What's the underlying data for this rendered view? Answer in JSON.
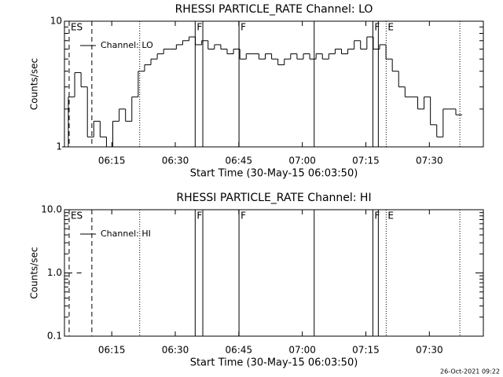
{
  "footer": "26-Oct-2021 09:22",
  "chart_data": [
    {
      "type": "line",
      "title": "RHESSI PARTICLE_RATE Channel: LO",
      "x_label": "Start Time (30-May-15 06:03:50)",
      "y_label": "Counts/sec",
      "log_y": true,
      "xlim": [
        363.83,
        462.75
      ],
      "ylim": [
        1,
        10
      ],
      "yticks": [
        1,
        10
      ],
      "xticks": [
        {
          "value": 375,
          "label": "06:15"
        },
        {
          "value": 390,
          "label": "06:30"
        },
        {
          "value": 405,
          "label": "06:45"
        },
        {
          "value": 420,
          "label": "07:00"
        },
        {
          "value": 435,
          "label": "07:15"
        },
        {
          "value": 450,
          "label": "07:30"
        }
      ],
      "markers": [
        {
          "x": 364.94,
          "style": "dashed",
          "label": "ES"
        },
        {
          "x": 370.3,
          "style": "dashed"
        },
        {
          "x": 381.6,
          "style": "dotted"
        },
        {
          "x": 394.7,
          "style": "solid",
          "label": "F"
        },
        {
          "x": 396.5,
          "style": "solid"
        },
        {
          "x": 405.05,
          "style": "solid",
          "label": "F"
        },
        {
          "x": 422.8,
          "style": "solid"
        },
        {
          "x": 436.66,
          "style": "solid",
          "label": "F"
        },
        {
          "x": 437.95,
          "style": "solid"
        },
        {
          "x": 439.8,
          "style": "dotted",
          "label": "E"
        },
        {
          "x": 457.2,
          "style": "dotted"
        }
      ],
      "series": [
        {
          "name": "Channel: LO",
          "color": "#000000",
          "x": [
            364,
            365.5,
            367,
            368.5,
            370,
            371.5,
            373,
            374.5,
            376,
            377.5,
            379,
            380.5,
            382,
            383.5,
            385,
            386.5,
            388,
            389.5,
            391,
            392.5,
            394,
            395.5,
            397,
            398.5,
            400,
            401.5,
            403,
            404.5,
            406,
            407.5,
            409,
            410.5,
            412,
            413.5,
            415,
            416.5,
            418,
            419.5,
            421,
            422.5,
            424,
            425.5,
            427,
            428.5,
            430,
            431.5,
            433,
            434.5,
            436,
            437.5,
            439,
            440.5,
            442,
            443.5,
            445,
            446.5,
            448,
            449.5,
            451,
            452.5,
            454,
            455.5,
            457
          ],
          "values": [
            1,
            2.5,
            3.9,
            3,
            1.2,
            1.6,
            1.2,
            1,
            1.6,
            2,
            1.6,
            2.5,
            4,
            4.5,
            5,
            5.5,
            6,
            6,
            6.5,
            7,
            7.5,
            6.5,
            7,
            6,
            6.5,
            6,
            5.5,
            6,
            5,
            5.5,
            5.5,
            5,
            5.5,
            5,
            4.5,
            5,
            5.5,
            5,
            5.5,
            5,
            5.5,
            5,
            5.5,
            6,
            5.5,
            6,
            7,
            6,
            7.5,
            6,
            6.5,
            5,
            4,
            3,
            2.5,
            2.5,
            2,
            2.5,
            1.5,
            1.2,
            2,
            2,
            1.8
          ]
        }
      ]
    },
    {
      "type": "line",
      "title": "RHESSI PARTICLE_RATE Channel: HI",
      "x_label": "Start Time (30-May-15 06:03:50)",
      "y_label": "Counts/sec",
      "log_y": true,
      "xlim": [
        363.83,
        462.75
      ],
      "ylim": [
        0.1,
        10
      ],
      "yticks": [
        0.1,
        {
          "value": 1,
          "label": "1.0"
        },
        {
          "value": 10,
          "label": "10.0"
        }
      ],
      "xticks": [
        {
          "value": 375,
          "label": "06:15"
        },
        {
          "value": 390,
          "label": "06:30"
        },
        {
          "value": 405,
          "label": "06:45"
        },
        {
          "value": 420,
          "label": "07:00"
        },
        {
          "value": 435,
          "label": "07:15"
        },
        {
          "value": 450,
          "label": "07:30"
        }
      ],
      "markers": [
        {
          "x": 364.94,
          "style": "dashed",
          "label": "ES"
        },
        {
          "x": 370.3,
          "style": "dashed"
        },
        {
          "x": 381.6,
          "style": "dotted"
        },
        {
          "x": 394.7,
          "style": "solid",
          "label": "F"
        },
        {
          "x": 396.5,
          "style": "solid"
        },
        {
          "x": 405.05,
          "style": "solid",
          "label": "F"
        },
        {
          "x": 422.8,
          "style": "solid"
        },
        {
          "x": 436.66,
          "style": "solid",
          "label": "F"
        },
        {
          "x": 437.95,
          "style": "solid"
        },
        {
          "x": 439.8,
          "style": "dotted",
          "label": "E"
        },
        {
          "x": 457.2,
          "style": "dotted"
        }
      ],
      "series": [
        {
          "name": "Channel: HI",
          "color": "#000000",
          "marker": "dash",
          "x": [
            364.5,
            367.3
          ],
          "values": [
            1,
            1
          ]
        }
      ]
    }
  ]
}
